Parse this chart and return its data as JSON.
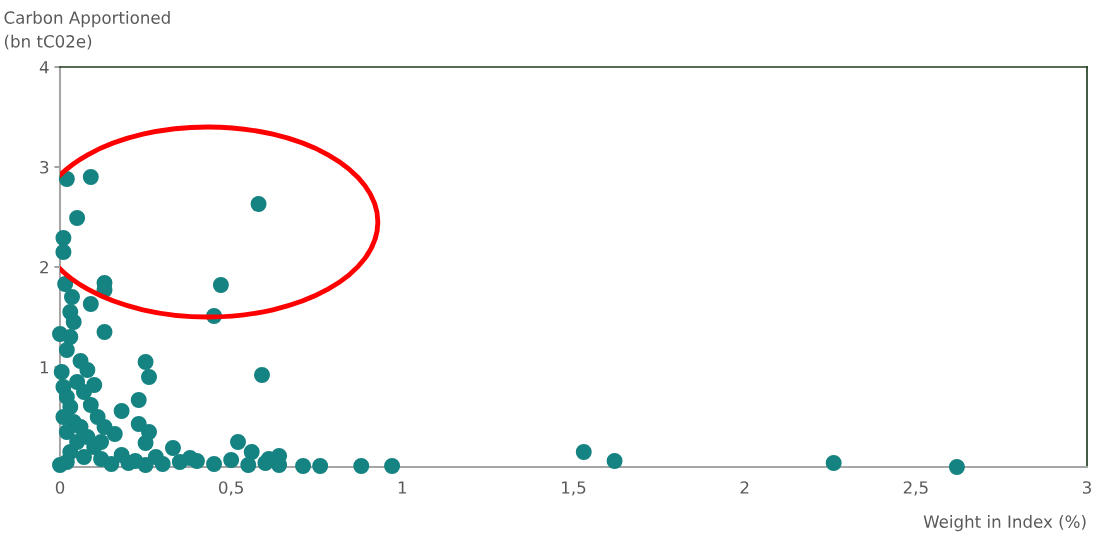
{
  "chart_data": {
    "type": "scatter",
    "ylabel": "Carbon Apportioned\n(bn tC02e)",
    "xlabel": "Weight in Index (%)",
    "xlim": [
      0,
      3
    ],
    "ylim": [
      0,
      4
    ],
    "xticks": [
      0,
      {
        "value": 0.5,
        "label": "0,5"
      },
      1,
      {
        "value": 1.5,
        "label": "1,5"
      },
      2,
      {
        "value": 2.5,
        "label": "2,5"
      },
      3
    ],
    "yticks": [
      {
        "value": 0,
        "label": null
      },
      1,
      2,
      3,
      4
    ],
    "grid": false,
    "legend": false,
    "marker": "circle",
    "series": [
      {
        "color": "#158381",
        "x": [
          0.02,
          0.09,
          0.05,
          0.01,
          0.01,
          0.58,
          0.47,
          0.45,
          0.13,
          0.13,
          0.09,
          0.035,
          0.015,
          0.03,
          0.13,
          0.0,
          0.02,
          0.25,
          0.26,
          0.59,
          0.08,
          0.1,
          0.23,
          0.18,
          0.23,
          0.26,
          0.25,
          0.16,
          0.33,
          0.52,
          0.56,
          0.64,
          0.61,
          0.71,
          0.76,
          0.88,
          0.97,
          1.53,
          1.62,
          2.26,
          2.62,
          0.005,
          0.01,
          0.02,
          0.03,
          0.01,
          0.04,
          0.06,
          0.02,
          0.08,
          0.05,
          0.1,
          0.03,
          0.07,
          0.12,
          0.02,
          0.0,
          0.15,
          0.2,
          0.25,
          0.3,
          0.35,
          0.4,
          0.45,
          0.5,
          0.55,
          0.6,
          0.64,
          0.05,
          0.07,
          0.11,
          0.13,
          0.09,
          0.06,
          0.03,
          0.04,
          0.12,
          0.18,
          0.22,
          0.28,
          0.38
        ],
        "values": [
          2.88,
          2.9,
          2.49,
          2.29,
          2.15,
          2.63,
          1.82,
          1.51,
          1.84,
          1.77,
          1.63,
          1.7,
          1.83,
          1.55,
          1.35,
          1.33,
          1.17,
          1.05,
          0.9,
          0.92,
          0.97,
          0.82,
          0.67,
          0.56,
          0.43,
          0.35,
          0.24,
          0.33,
          0.19,
          0.25,
          0.15,
          0.11,
          0.08,
          0.01,
          0.01,
          0.01,
          0.01,
          0.15,
          0.06,
          0.04,
          0.0,
          0.95,
          0.8,
          0.7,
          0.6,
          0.5,
          0.45,
          0.4,
          0.35,
          0.3,
          0.25,
          0.2,
          0.15,
          0.1,
          0.08,
          0.05,
          0.02,
          0.03,
          0.04,
          0.02,
          0.03,
          0.05,
          0.06,
          0.03,
          0.07,
          0.02,
          0.04,
          0.02,
          0.85,
          0.75,
          0.5,
          0.4,
          0.62,
          1.06,
          1.3,
          1.45,
          0.25,
          0.12,
          0.06,
          0.1,
          0.09
        ]
      }
    ]
  }
}
